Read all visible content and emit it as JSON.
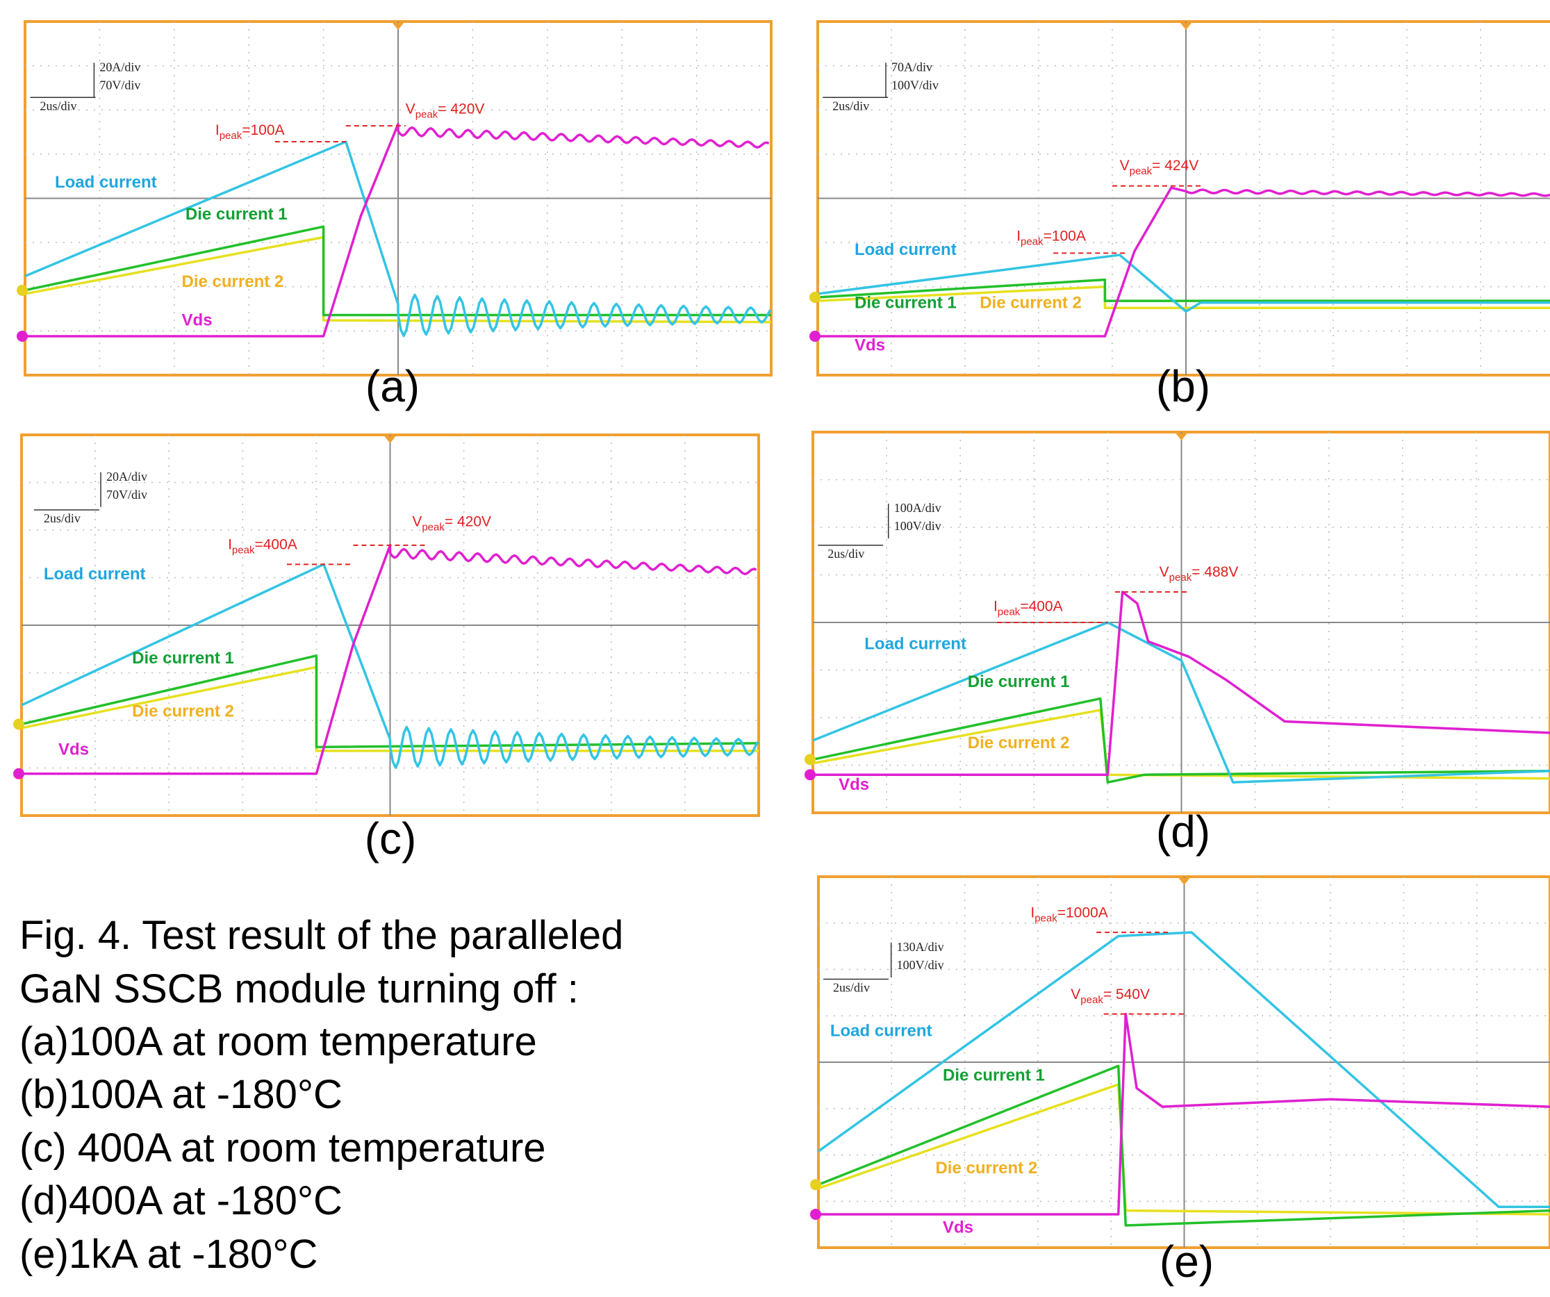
{
  "panels": [
    {
      "label": "(a)",
      "scale": {
        "current": "20A/div",
        "voltage": "70V/div",
        "time": "2us/div"
      },
      "i_peak": {
        "symbol": "I",
        "subscript": "peak",
        "text": "=100A"
      },
      "v_peak": {
        "symbol": "V",
        "subscript": "peak",
        "text": "= 420V"
      },
      "traces": {
        "load": "Load current",
        "die1": "Die current 1",
        "die2": "Die current 2",
        "vds": "Vds"
      }
    },
    {
      "label": "(b)",
      "scale": {
        "current": "70A/div",
        "voltage": "100V/div",
        "time": "2us/div"
      },
      "i_peak": {
        "symbol": "I",
        "subscript": "peak",
        "text": "=100A"
      },
      "v_peak": {
        "symbol": "V",
        "subscript": "peak",
        "text": "= 424V"
      },
      "traces": {
        "load": "Load current",
        "die1": "Die current 1",
        "die2": "Die current 2",
        "vds": "Vds"
      }
    },
    {
      "label": "(c)",
      "scale": {
        "current": "20A/div",
        "voltage": "70V/div",
        "time": "2us/div"
      },
      "i_peak": {
        "symbol": "I",
        "subscript": "peak",
        "text": "=400A"
      },
      "v_peak": {
        "symbol": "V",
        "subscript": "peak",
        "text": "= 420V"
      },
      "traces": {
        "load": "Load current",
        "die1": "Die current 1",
        "die2": "Die current 2",
        "vds": "Vds"
      }
    },
    {
      "label": "(d)",
      "scale": {
        "current": "100A/div",
        "voltage": "100V/div",
        "time": "2us/div"
      },
      "i_peak": {
        "symbol": "I",
        "subscript": "peak",
        "text": "=400A"
      },
      "v_peak": {
        "symbol": "V",
        "subscript": "peak",
        "text": "= 488V"
      },
      "traces": {
        "load": "Load current",
        "die1": "Die current 1",
        "die2": "Die current 2",
        "vds": "Vds"
      }
    },
    {
      "label": "(e)",
      "scale": {
        "current": "130A/div",
        "voltage": "100V/div",
        "time": "2us/div"
      },
      "i_peak": {
        "symbol": "I",
        "subscript": "peak",
        "text": "=1000A"
      },
      "v_peak": {
        "symbol": "V",
        "subscript": "peak",
        "text": "= 540V"
      },
      "traces": {
        "load": "Load current",
        "die1": "Die current 1",
        "die2": "Die current 2",
        "vds": "Vds"
      }
    }
  ],
  "caption": [
    "Fig. 4. Test result of the paralleled",
    "GaN SSCB module turning off :",
    "(a)100A at room temperature",
    "(b)100A at -180°C",
    "(c) 400A at room temperature",
    "(d)400A at -180°C",
    "(e)1kA at -180°C"
  ]
}
